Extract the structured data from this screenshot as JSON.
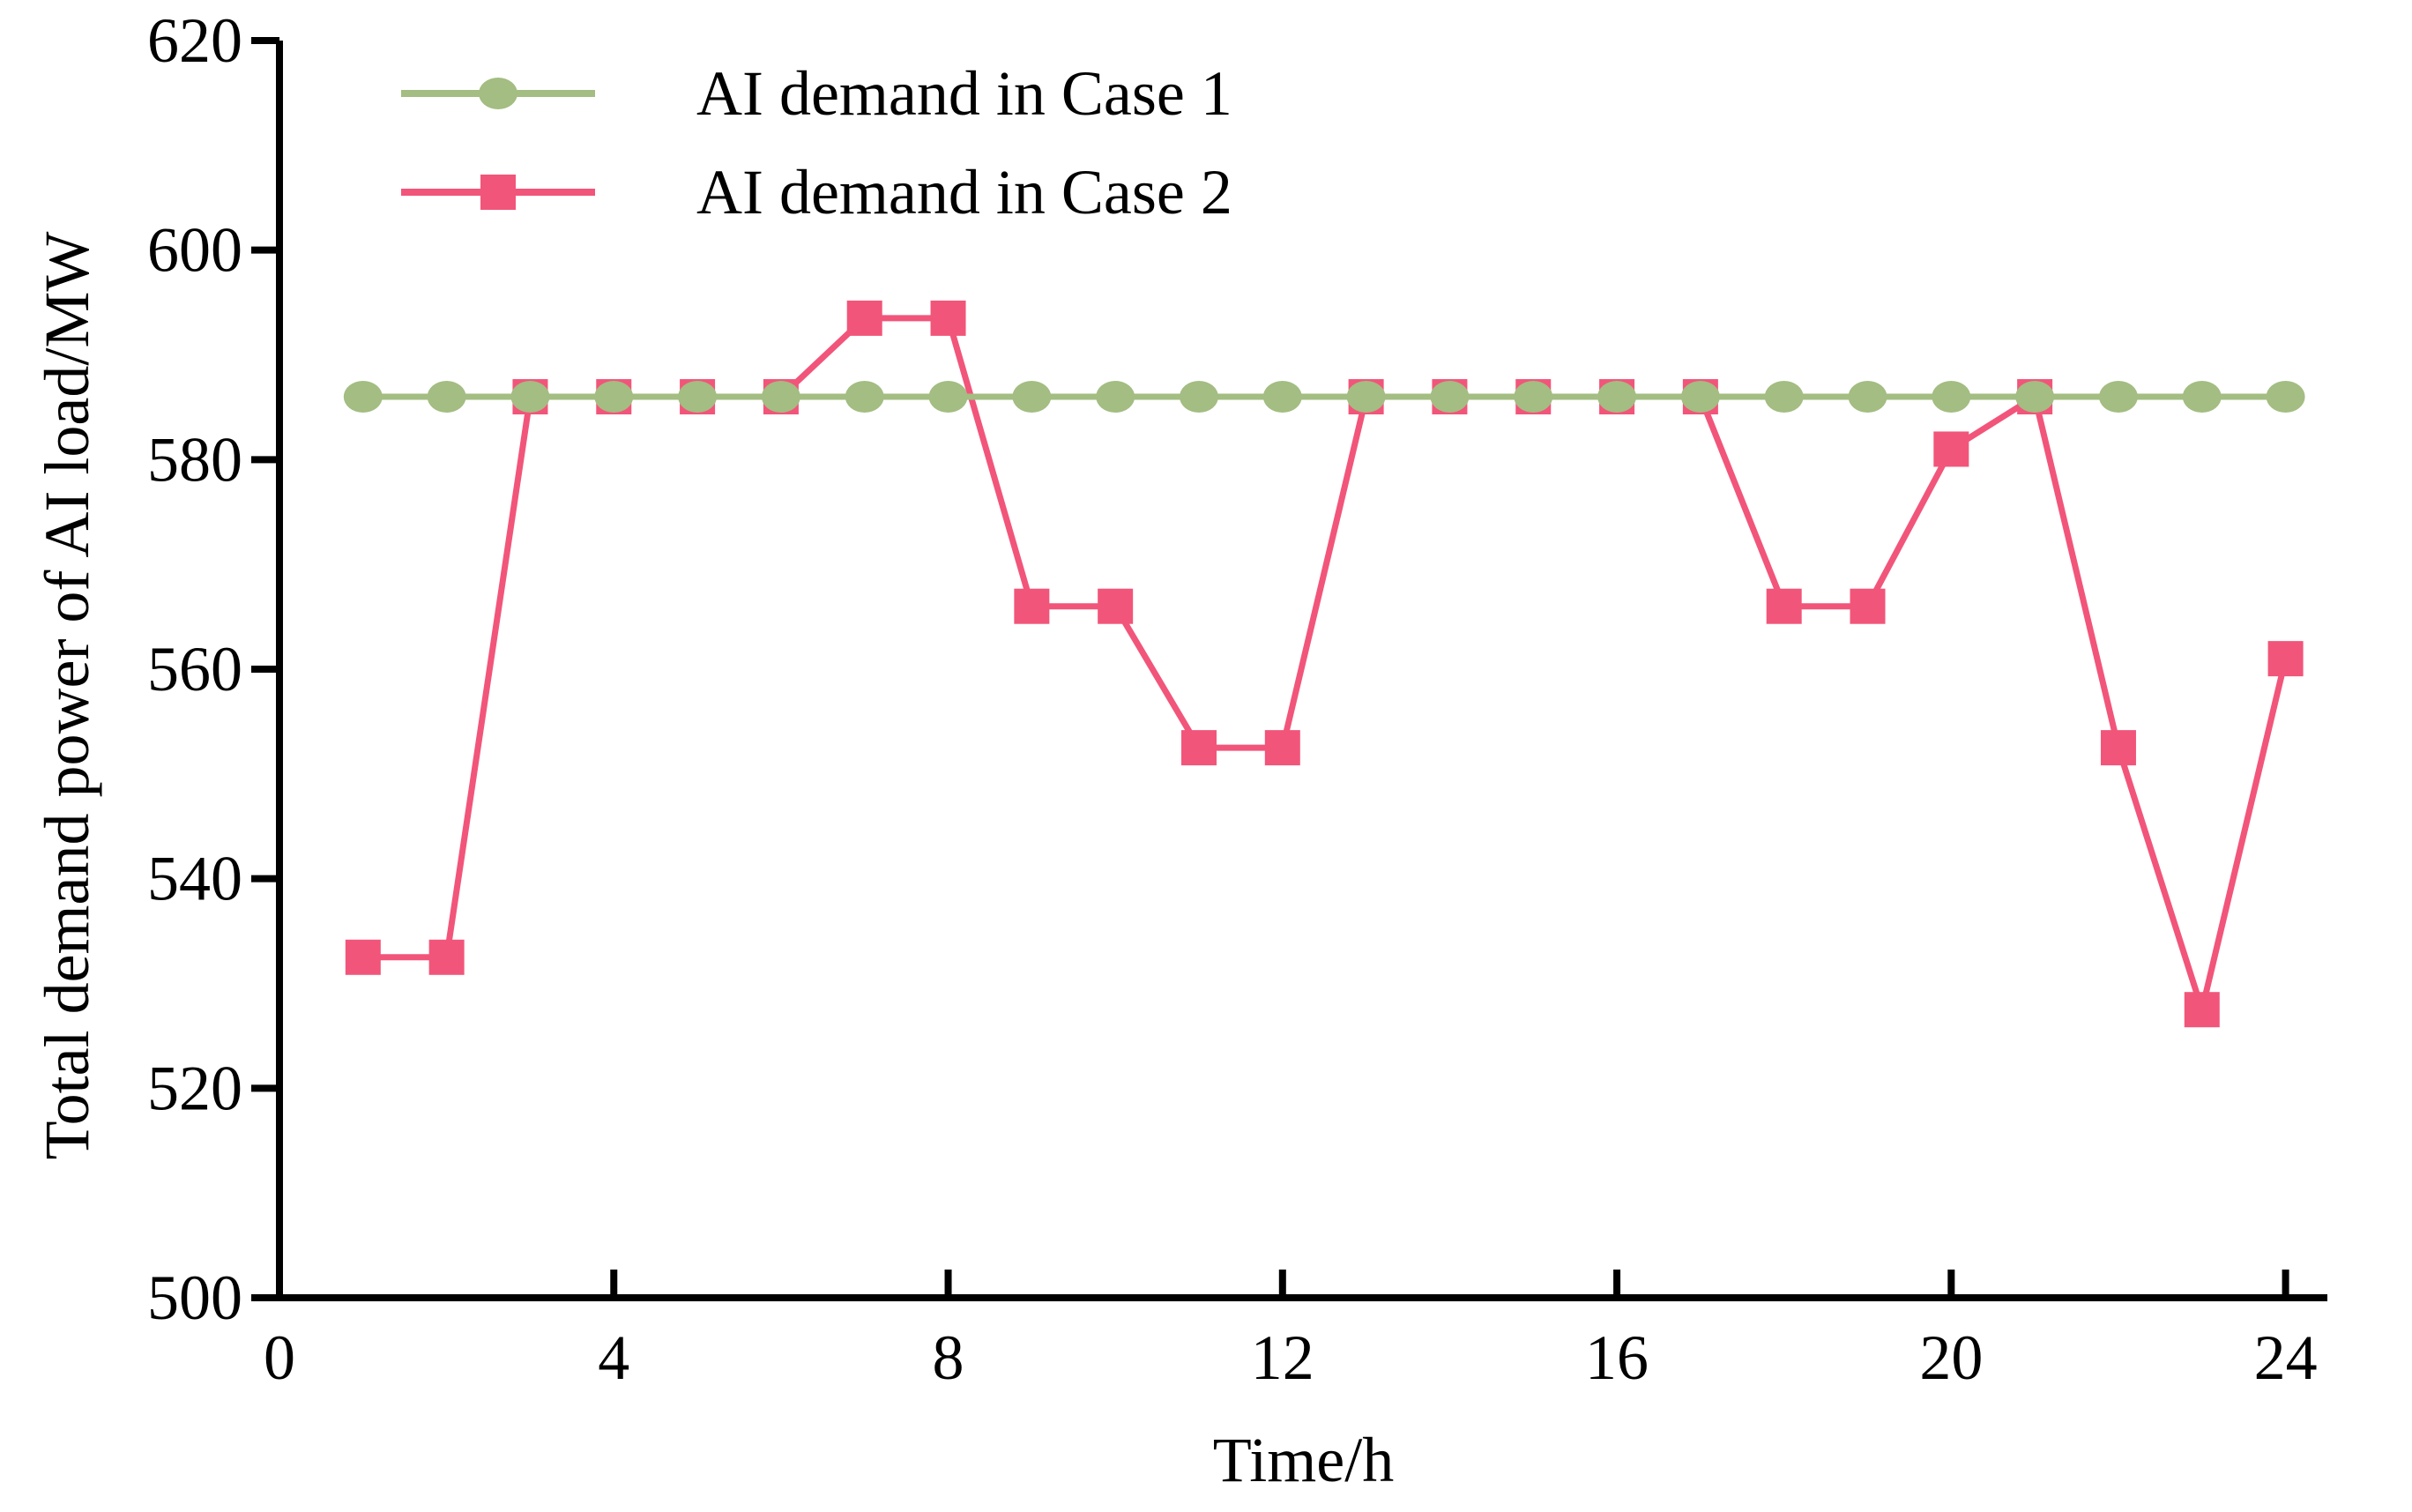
{
  "chart_data": {
    "type": "line",
    "title": "",
    "xlabel": "Time/h",
    "ylabel": "Total demand power of AI load/MW",
    "xlim": [
      0,
      24.5
    ],
    "ylim": [
      500,
      620
    ],
    "xticks": [
      0,
      4,
      8,
      12,
      16,
      20,
      24
    ],
    "yticks": [
      500,
      520,
      540,
      560,
      580,
      600,
      620
    ],
    "grid": false,
    "legend_position": "top-left",
    "x": [
      1,
      2,
      3,
      4,
      5,
      6,
      7,
      8,
      9,
      10,
      11,
      12,
      13,
      14,
      15,
      16,
      17,
      18,
      19,
      20,
      21,
      22,
      23,
      24
    ],
    "series": [
      {
        "name": "AI demand in Case 1",
        "color": "#a3bd82",
        "marker": "circle",
        "values": [
          586,
          586,
          586,
          586,
          586,
          586,
          586,
          586,
          586,
          586,
          586,
          586,
          586,
          586,
          586,
          586,
          586,
          586,
          586,
          586,
          586,
          586,
          586,
          586
        ]
      },
      {
        "name": "AI demand in Case 2",
        "color": "#f2557a",
        "marker": "square",
        "values": [
          532.5,
          532.5,
          586,
          586,
          586,
          586,
          593.5,
          593.5,
          566,
          566,
          552.5,
          552.5,
          586,
          586,
          586,
          586,
          586,
          566,
          566,
          581,
          586,
          552.5,
          527.5,
          561
        ]
      }
    ]
  }
}
